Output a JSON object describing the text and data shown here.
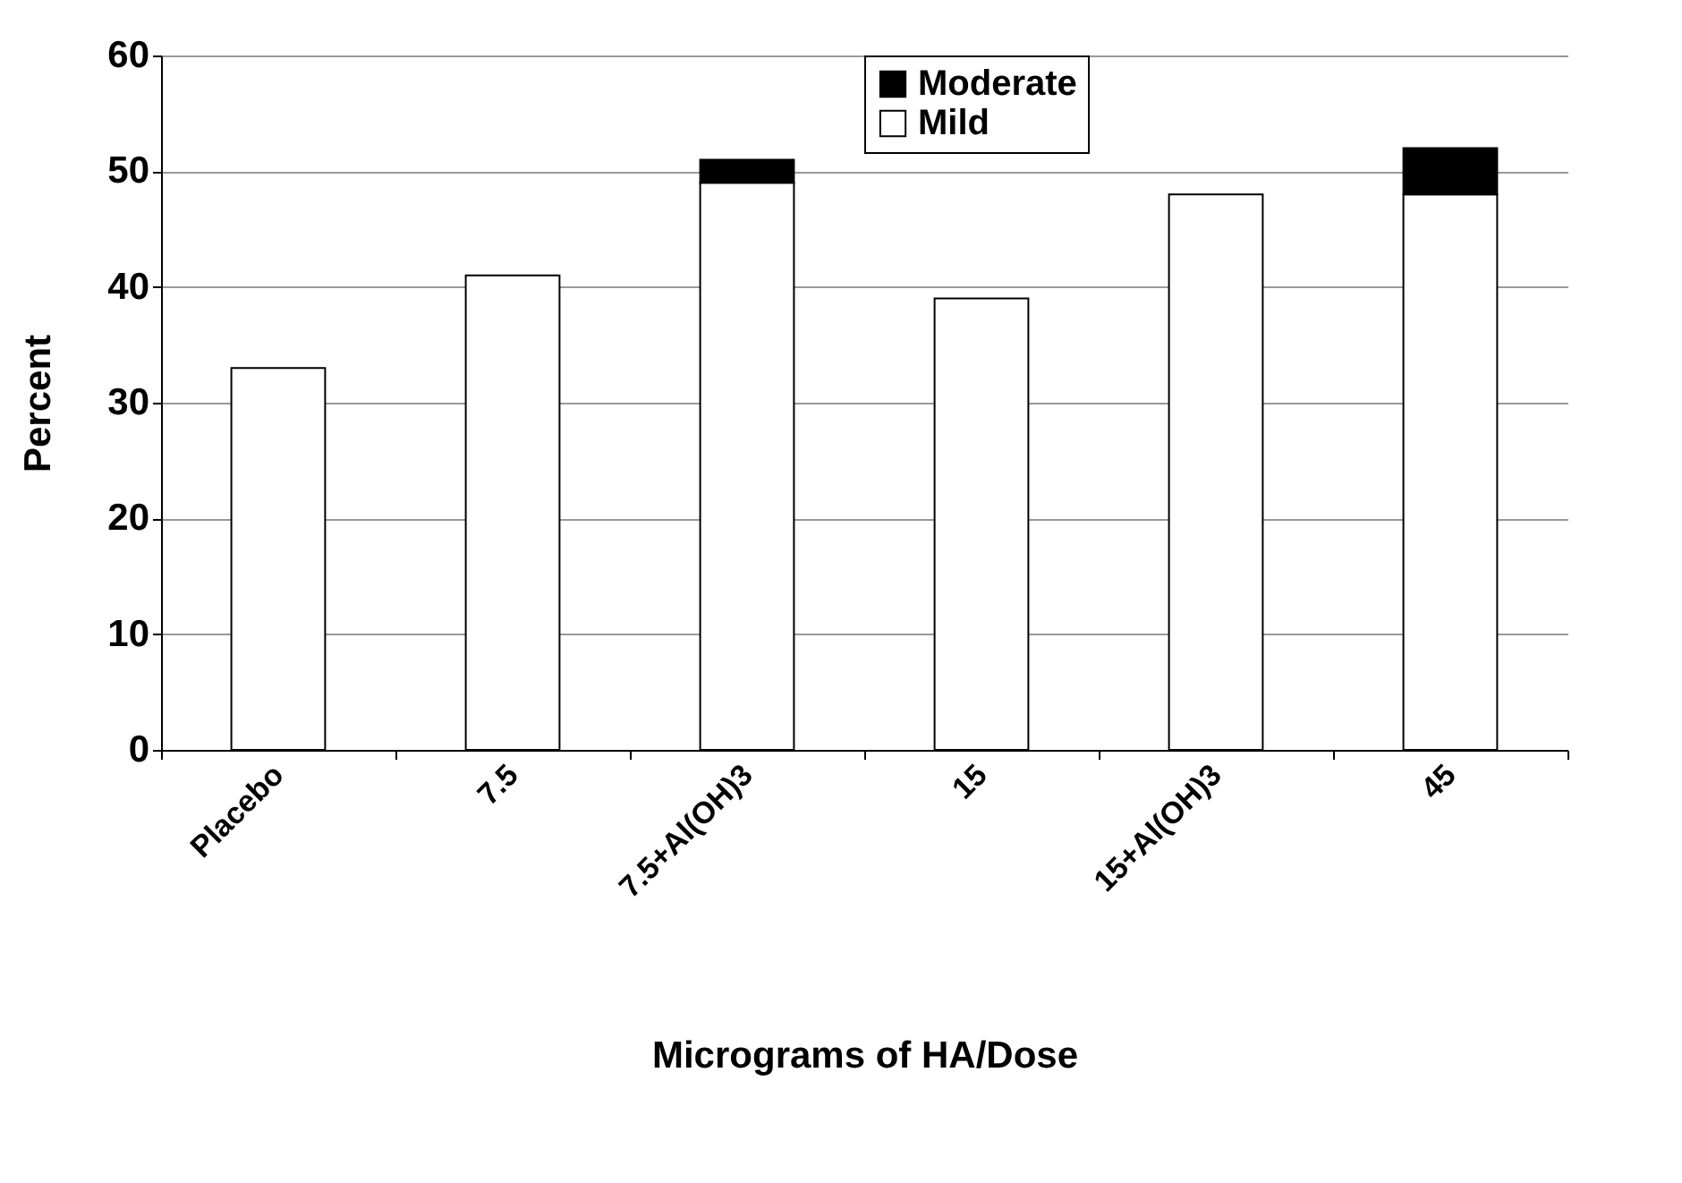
{
  "chart_data": {
    "type": "bar",
    "stacked": true,
    "xlabel": "Micrograms of HA/Dose",
    "ylabel": "Percent",
    "categories": [
      "Placebo",
      "7.5",
      "7.5+Al(OH)3",
      "15",
      "15+Al(OH)3",
      "45"
    ],
    "series": [
      {
        "name": "Mild",
        "color": "#ffffff",
        "values": [
          33,
          41,
          49,
          39,
          48,
          48
        ]
      },
      {
        "name": "Moderate",
        "color": "#000000",
        "values": [
          null,
          null,
          2,
          null,
          null,
          4
        ]
      }
    ],
    "ylim": [
      0,
      60
    ],
    "yticks": [
      0,
      10,
      20,
      30,
      40,
      50,
      60
    ],
    "grid": "y",
    "legend": "top"
  }
}
